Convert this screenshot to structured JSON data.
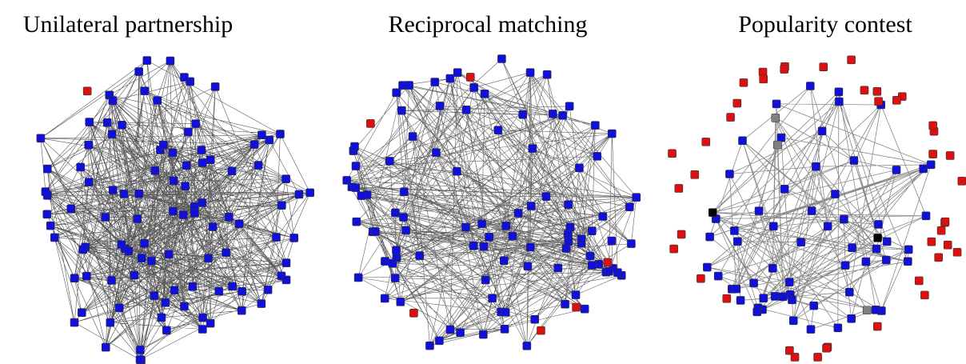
{
  "panels": [
    {
      "title": "Unilateral partnership"
    },
    {
      "title": "Reciprocal matching"
    },
    {
      "title": "Popularity contest"
    }
  ]
}
